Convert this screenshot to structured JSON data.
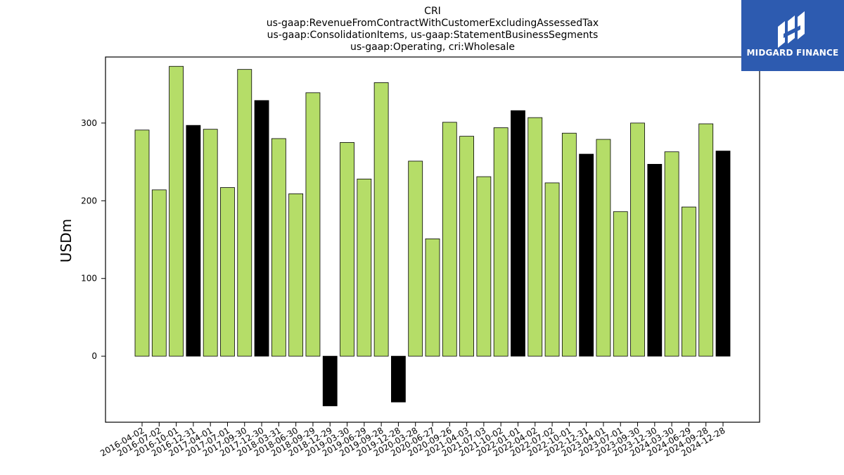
{
  "chart_data": {
    "type": "bar",
    "title_lines": [
      "CRI",
      "us-gaap:RevenueFromContractWithCustomerExcludingAssessedTax",
      "us-gaap:ConsolidationItems, us-gaap:StatementBusinessSegments",
      "us-gaap:Operating, cri:Wholesale"
    ],
    "xlabel": "",
    "ylabel": "USDm",
    "ylim": [
      -85,
      385
    ],
    "yticks": [
      0,
      100,
      200,
      300
    ],
    "grid": false,
    "colors": {
      "quarter": "#b5dd68",
      "fiscal_year_end": "#000000"
    },
    "categories": [
      "2016-04-02",
      "2016-07-02",
      "2016-10-01",
      "2016-12-31",
      "2017-04-01",
      "2017-07-01",
      "2017-09-30",
      "2017-12-30",
      "2018-03-31",
      "2018-06-30",
      "2018-09-29",
      "2018-12-29",
      "2019-03-30",
      "2019-06-29",
      "2019-09-28",
      "2019-12-28",
      "2020-03-28",
      "2020-06-27",
      "2020-09-26",
      "2021-04-03",
      "2021-07-03",
      "2021-10-02",
      "2022-01-01",
      "2022-04-02",
      "2022-07-02",
      "2022-10-01",
      "2022-12-31",
      "2023-04-01",
      "2023-07-01",
      "2023-09-30",
      "2023-12-30",
      "2024-03-30",
      "2024-06-29",
      "2024-09-28",
      "2024-12-28"
    ],
    "values": [
      291,
      214,
      373,
      297,
      292,
      217,
      369,
      329,
      280,
      209,
      339,
      -64,
      275,
      228,
      352,
      -59,
      251,
      151,
      301,
      283,
      231,
      294,
      316,
      307,
      223,
      287,
      260,
      279,
      186,
      300,
      247,
      263,
      192,
      299,
      264
    ],
    "highlight": [
      false,
      false,
      false,
      true,
      false,
      false,
      false,
      true,
      false,
      false,
      false,
      true,
      false,
      false,
      false,
      true,
      false,
      false,
      false,
      false,
      false,
      false,
      true,
      false,
      false,
      false,
      true,
      false,
      false,
      false,
      true,
      false,
      false,
      false,
      true
    ]
  },
  "logo": {
    "text": "MIDGARD FINANCE",
    "bg": "#2d5bb0"
  }
}
